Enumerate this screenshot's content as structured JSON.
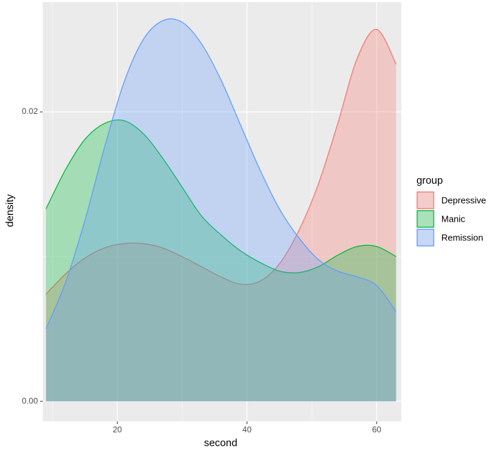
{
  "chart_data": {
    "type": "density",
    "x_label": "second",
    "y_label": "density",
    "x": [
      9,
      12,
      15,
      18,
      21,
      24,
      27,
      30,
      33,
      36,
      39,
      42,
      45,
      48,
      51,
      54,
      57,
      60,
      63
    ],
    "series": [
      {
        "name": "Depressive",
        "color": "#F8766D",
        "values": [
          0.0074,
          0.0088,
          0.0099,
          0.0106,
          0.0109,
          0.0109,
          0.0106,
          0.01,
          0.0093,
          0.0086,
          0.0081,
          0.0083,
          0.0095,
          0.0118,
          0.015,
          0.0192,
          0.0237,
          0.0257,
          0.0233
        ]
      },
      {
        "name": "Manic",
        "color": "#00BA38",
        "values": [
          0.0133,
          0.016,
          0.0181,
          0.0192,
          0.0194,
          0.0185,
          0.0168,
          0.0148,
          0.0128,
          0.0115,
          0.0104,
          0.0096,
          0.009,
          0.0089,
          0.0093,
          0.0101,
          0.0107,
          0.0107,
          0.01
        ]
      },
      {
        "name": "Remission",
        "color": "#619CFF",
        "values": [
          0.005,
          0.0082,
          0.0125,
          0.0175,
          0.022,
          0.025,
          0.0263,
          0.0262,
          0.0247,
          0.0222,
          0.0191,
          0.016,
          0.0133,
          0.0113,
          0.0098,
          0.009,
          0.0086,
          0.008,
          0.0062
        ]
      }
    ],
    "legend_title": "group",
    "xlim": [
      8.5,
      63.8
    ],
    "xticks": [
      20,
      40,
      60
    ],
    "ylim": [
      -0.00138,
      0.02759
    ],
    "yticks": [
      {
        "value": 0,
        "label": "0.00"
      },
      0.02
    ],
    "grid": true,
    "legend_position": "right"
  }
}
